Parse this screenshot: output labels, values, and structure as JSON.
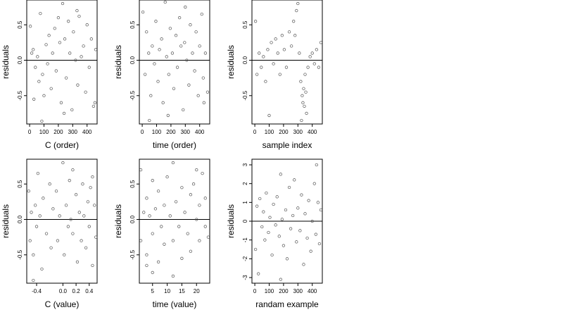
{
  "figure": {
    "panels": [
      {
        "id": "c-order",
        "xlabel": "C (order)",
        "ylabel": "residuals",
        "x_ticks": [
          0,
          100,
          200,
          300,
          400
        ],
        "y_ticks": [
          -0.5,
          0.0,
          0.5
        ],
        "y_tick_labels": [
          "-0.5",
          "0.0",
          "0.5"
        ]
      },
      {
        "id": "time-order",
        "xlabel": "time (order)",
        "ylabel": "residuals",
        "x_ticks": [
          0,
          100,
          200,
          300,
          400
        ],
        "y_ticks": [
          -0.5,
          0.0,
          0.5
        ],
        "y_tick_labels": [
          "-0.5",
          "0.0",
          "0.5"
        ]
      },
      {
        "id": "sample-index",
        "xlabel": "sample index",
        "ylabel": "residuals",
        "x_ticks": [
          0,
          100,
          200,
          300,
          400
        ],
        "y_ticks": [
          -0.5,
          0.0,
          0.5
        ],
        "y_tick_labels": [
          "-0.5",
          "0.0",
          "0.5"
        ]
      },
      {
        "id": "c-value",
        "xlabel": "C (value)",
        "ylabel": "residuals",
        "x_ticks": [
          -0.4,
          0.0,
          0.2,
          0.4
        ],
        "x_tick_labels": [
          "-0.4",
          "0.0",
          "0.2",
          "0.4"
        ],
        "y_ticks": [
          -0.5,
          0.0,
          0.5
        ],
        "y_tick_labels": [
          "-0.5",
          "0.0",
          "0.5"
        ]
      },
      {
        "id": "time-value",
        "xlabel": "time (value)",
        "ylabel": "residuals",
        "x_ticks": [
          5,
          10,
          15,
          20
        ],
        "y_ticks": [
          -0.5,
          0.0,
          0.5
        ],
        "y_tick_labels": [
          "-0.5",
          "0.0",
          "0.5"
        ]
      },
      {
        "id": "random-example",
        "xlabel": "randam example",
        "ylabel": "residuals",
        "x_ticks": [
          0,
          100,
          200,
          300,
          400
        ],
        "y_ticks": [
          -3,
          -2,
          -1,
          0,
          1,
          2,
          3
        ]
      }
    ]
  },
  "chart_data": [
    {
      "type": "scatter",
      "xlabel": "C (order)",
      "ylabel": "residuals",
      "xlim": [
        -20,
        470
      ],
      "ylim": [
        -0.9,
        0.85
      ],
      "reference_line": 0,
      "grid": false,
      "marker": "open-circle",
      "points": [
        [
          5,
          0.48
        ],
        [
          15,
          0.1
        ],
        [
          25,
          0.15
        ],
        [
          40,
          -0.1
        ],
        [
          55,
          0.05
        ],
        [
          65,
          -0.3
        ],
        [
          75,
          0.66
        ],
        [
          90,
          -0.2
        ],
        [
          100,
          -0.5
        ],
        [
          115,
          0.22
        ],
        [
          125,
          -0.05
        ],
        [
          135,
          0.35
        ],
        [
          150,
          -0.4
        ],
        [
          160,
          0.1
        ],
        [
          175,
          0.45
        ],
        [
          185,
          -0.15
        ],
        [
          200,
          0.6
        ],
        [
          210,
          0.25
        ],
        [
          220,
          -0.6
        ],
        [
          230,
          0.8
        ],
        [
          245,
          0.3
        ],
        [
          255,
          -0.25
        ],
        [
          270,
          0.55
        ],
        [
          280,
          0.1
        ],
        [
          295,
          -0.7
        ],
        [
          305,
          0.4
        ],
        [
          320,
          0.0
        ],
        [
          335,
          -0.35
        ],
        [
          345,
          0.62
        ],
        [
          360,
          0.05
        ],
        [
          375,
          0.2
        ],
        [
          390,
          -0.45
        ],
        [
          400,
          0.5
        ],
        [
          415,
          -0.1
        ],
        [
          430,
          0.3
        ],
        [
          445,
          -0.65
        ],
        [
          460,
          0.15
        ],
        [
          30,
          -0.55
        ],
        [
          85,
          -0.86
        ],
        [
          240,
          -0.75
        ],
        [
          330,
          0.7
        ],
        [
          455,
          -0.6
        ]
      ]
    },
    {
      "type": "scatter",
      "xlabel": "time (order)",
      "ylabel": "residuals",
      "xlim": [
        -20,
        470
      ],
      "ylim": [
        -0.9,
        0.85
      ],
      "reference_line": 0,
      "grid": false,
      "marker": "open-circle",
      "points": [
        [
          5,
          0.68
        ],
        [
          20,
          -0.2
        ],
        [
          30,
          0.4
        ],
        [
          45,
          0.1
        ],
        [
          60,
          -0.5
        ],
        [
          70,
          0.2
        ],
        [
          85,
          -0.05
        ],
        [
          95,
          0.55
        ],
        [
          110,
          -0.3
        ],
        [
          120,
          0.15
        ],
        [
          135,
          0.3
        ],
        [
          145,
          -0.6
        ],
        [
          160,
          0.82
        ],
        [
          170,
          0.05
        ],
        [
          185,
          -0.2
        ],
        [
          195,
          0.45
        ],
        [
          210,
          0.1
        ],
        [
          220,
          -0.4
        ],
        [
          235,
          0.35
        ],
        [
          245,
          -0.1
        ],
        [
          260,
          0.6
        ],
        [
          270,
          0.2
        ],
        [
          285,
          -0.7
        ],
        [
          295,
          0.25
        ],
        [
          310,
          0.0
        ],
        [
          325,
          -0.35
        ],
        [
          335,
          0.5
        ],
        [
          350,
          0.1
        ],
        [
          365,
          -0.15
        ],
        [
          375,
          0.4
        ],
        [
          390,
          -0.5
        ],
        [
          400,
          0.2
        ],
        [
          415,
          0.65
        ],
        [
          425,
          -0.25
        ],
        [
          440,
          0.1
        ],
        [
          455,
          -0.45
        ],
        [
          50,
          -0.85
        ],
        [
          180,
          -0.78
        ],
        [
          300,
          0.75
        ],
        [
          430,
          -0.6
        ]
      ]
    },
    {
      "type": "scatter",
      "xlabel": "sample index",
      "ylabel": "residuals",
      "xlim": [
        -20,
        470
      ],
      "ylim": [
        -0.9,
        0.85
      ],
      "reference_line": 0,
      "grid": false,
      "marker": "open-circle",
      "points": [
        [
          5,
          0.55
        ],
        [
          15,
          -0.2
        ],
        [
          30,
          0.1
        ],
        [
          45,
          -0.1
        ],
        [
          60,
          0.05
        ],
        [
          75,
          -0.3
        ],
        [
          90,
          0.15
        ],
        [
          100,
          -0.78
        ],
        [
          115,
          0.25
        ],
        [
          130,
          -0.05
        ],
        [
          145,
          0.3
        ],
        [
          160,
          0.1
        ],
        [
          175,
          -0.2
        ],
        [
          190,
          0.35
        ],
        [
          205,
          0.15
        ],
        [
          220,
          -0.1
        ],
        [
          240,
          0.4
        ],
        [
          255,
          0.2
        ],
        [
          270,
          0.55
        ],
        [
          280,
          0.35
        ],
        [
          290,
          0.7
        ],
        [
          300,
          0.8
        ],
        [
          310,
          0.1
        ],
        [
          320,
          -0.3
        ],
        [
          330,
          -0.5
        ],
        [
          335,
          -0.6
        ],
        [
          340,
          -0.4
        ],
        [
          345,
          -0.65
        ],
        [
          350,
          -0.2
        ],
        [
          360,
          -0.75
        ],
        [
          370,
          -0.1
        ],
        [
          385,
          0.05
        ],
        [
          400,
          0.1
        ],
        [
          415,
          -0.05
        ],
        [
          430,
          0.15
        ],
        [
          445,
          -0.1
        ],
        [
          460,
          0.25
        ],
        [
          325,
          -0.85
        ],
        [
          355,
          -0.45
        ]
      ]
    },
    {
      "type": "scatter",
      "xlabel": "C (value)",
      "ylabel": "residuals",
      "xlim": [
        -0.55,
        0.52
      ],
      "ylim": [
        -0.9,
        0.85
      ],
      "reference_line": 0,
      "grid": false,
      "marker": "open-circle",
      "points": [
        [
          -0.52,
          0.4
        ],
        [
          -0.5,
          -0.3
        ],
        [
          -0.48,
          0.1
        ],
        [
          -0.45,
          -0.5
        ],
        [
          -0.42,
          0.2
        ],
        [
          -0.4,
          -0.1
        ],
        [
          -0.38,
          0.65
        ],
        [
          -0.35,
          0.05
        ],
        [
          -0.32,
          -0.7
        ],
        [
          -0.3,
          0.3
        ],
        [
          -0.25,
          -0.2
        ],
        [
          -0.2,
          0.5
        ],
        [
          -0.18,
          -0.4
        ],
        [
          -0.15,
          0.15
        ],
        [
          -0.1,
          0.4
        ],
        [
          -0.08,
          -0.3
        ],
        [
          -0.05,
          0.05
        ],
        [
          0.0,
          0.8
        ],
        [
          0.02,
          -0.5
        ],
        [
          0.05,
          0.2
        ],
        [
          0.08,
          -0.1
        ],
        [
          0.1,
          0.55
        ],
        [
          0.12,
          0.0
        ],
        [
          0.15,
          -0.2
        ],
        [
          0.2,
          0.35
        ],
        [
          0.22,
          -0.6
        ],
        [
          0.25,
          0.1
        ],
        [
          0.28,
          -0.3
        ],
        [
          0.3,
          0.5
        ],
        [
          0.32,
          0.05
        ],
        [
          0.35,
          -0.4
        ],
        [
          0.38,
          0.25
        ],
        [
          0.4,
          -0.1
        ],
        [
          0.42,
          0.45
        ],
        [
          0.45,
          -0.65
        ],
        [
          0.48,
          0.2
        ],
        [
          0.5,
          -0.25
        ],
        [
          -0.45,
          -0.86
        ],
        [
          0.15,
          0.7
        ],
        [
          0.45,
          0.6
        ]
      ]
    },
    {
      "type": "scatter",
      "xlabel": "time (value)",
      "ylabel": "residuals",
      "xlim": [
        0.5,
        24.5
      ],
      "ylim": [
        -0.9,
        0.85
      ],
      "reference_line": 0,
      "grid": false,
      "marker": "open-circle",
      "points": [
        [
          1,
          0.7
        ],
        [
          1,
          -0.3
        ],
        [
          2,
          0.1
        ],
        [
          3,
          -0.5
        ],
        [
          3,
          0.3
        ],
        [
          4,
          0.05
        ],
        [
          5,
          -0.2
        ],
        [
          5,
          0.55
        ],
        [
          6,
          0.15
        ],
        [
          7,
          -0.6
        ],
        [
          7,
          0.4
        ],
        [
          8,
          -0.1
        ],
        [
          9,
          0.2
        ],
        [
          9,
          -0.35
        ],
        [
          10,
          0.6
        ],
        [
          11,
          0.05
        ],
        [
          12,
          0.8
        ],
        [
          12,
          -0.3
        ],
        [
          13,
          0.25
        ],
        [
          14,
          -0.1
        ],
        [
          15,
          0.45
        ],
        [
          15,
          -0.55
        ],
        [
          16,
          0.1
        ],
        [
          17,
          -0.2
        ],
        [
          18,
          0.35
        ],
        [
          18,
          -0.45
        ],
        [
          19,
          0.5
        ],
        [
          20,
          0.0
        ],
        [
          21,
          -0.3
        ],
        [
          21,
          0.2
        ],
        [
          22,
          0.65
        ],
        [
          23,
          -0.1
        ],
        [
          23,
          0.3
        ],
        [
          24,
          -0.25
        ],
        [
          5,
          -0.75
        ],
        [
          12,
          -0.8
        ],
        [
          20,
          0.7
        ],
        [
          3,
          -0.65
        ]
      ]
    },
    {
      "type": "scatter",
      "xlabel": "randam example",
      "ylabel": "residuals",
      "xlim": [
        -20,
        470
      ],
      "ylim": [
        -3.3,
        3.3
      ],
      "reference_line": 0,
      "grid": false,
      "marker": "open-circle",
      "points": [
        [
          5,
          -1.5
        ],
        [
          15,
          0.8
        ],
        [
          25,
          -2.8
        ],
        [
          35,
          1.2
        ],
        [
          50,
          -0.3
        ],
        [
          60,
          0.5
        ],
        [
          70,
          -1.0
        ],
        [
          80,
          1.5
        ],
        [
          95,
          -0.6
        ],
        [
          105,
          0.2
        ],
        [
          120,
          -1.8
        ],
        [
          130,
          0.9
        ],
        [
          145,
          -0.2
        ],
        [
          155,
          1.3
        ],
        [
          170,
          -0.8
        ],
        [
          180,
          2.5
        ],
        [
          190,
          0.1
        ],
        [
          200,
          -1.3
        ],
        [
          215,
          0.6
        ],
        [
          225,
          -2.0
        ],
        [
          240,
          1.8
        ],
        [
          250,
          -0.4
        ],
        [
          265,
          0.3
        ],
        [
          275,
          2.2
        ],
        [
          290,
          -1.1
        ],
        [
          300,
          0.7
        ],
        [
          315,
          -0.5
        ],
        [
          325,
          1.4
        ],
        [
          340,
          -2.3
        ],
        [
          350,
          0.4
        ],
        [
          365,
          -0.9
        ],
        [
          375,
          1.1
        ],
        [
          390,
          -1.6
        ],
        [
          400,
          0.0
        ],
        [
          415,
          2.0
        ],
        [
          425,
          -0.7
        ],
        [
          440,
          1.0
        ],
        [
          450,
          -1.2
        ],
        [
          460,
          0.6
        ],
        [
          430,
          3.0
        ],
        [
          180,
          -3.1
        ]
      ]
    }
  ]
}
